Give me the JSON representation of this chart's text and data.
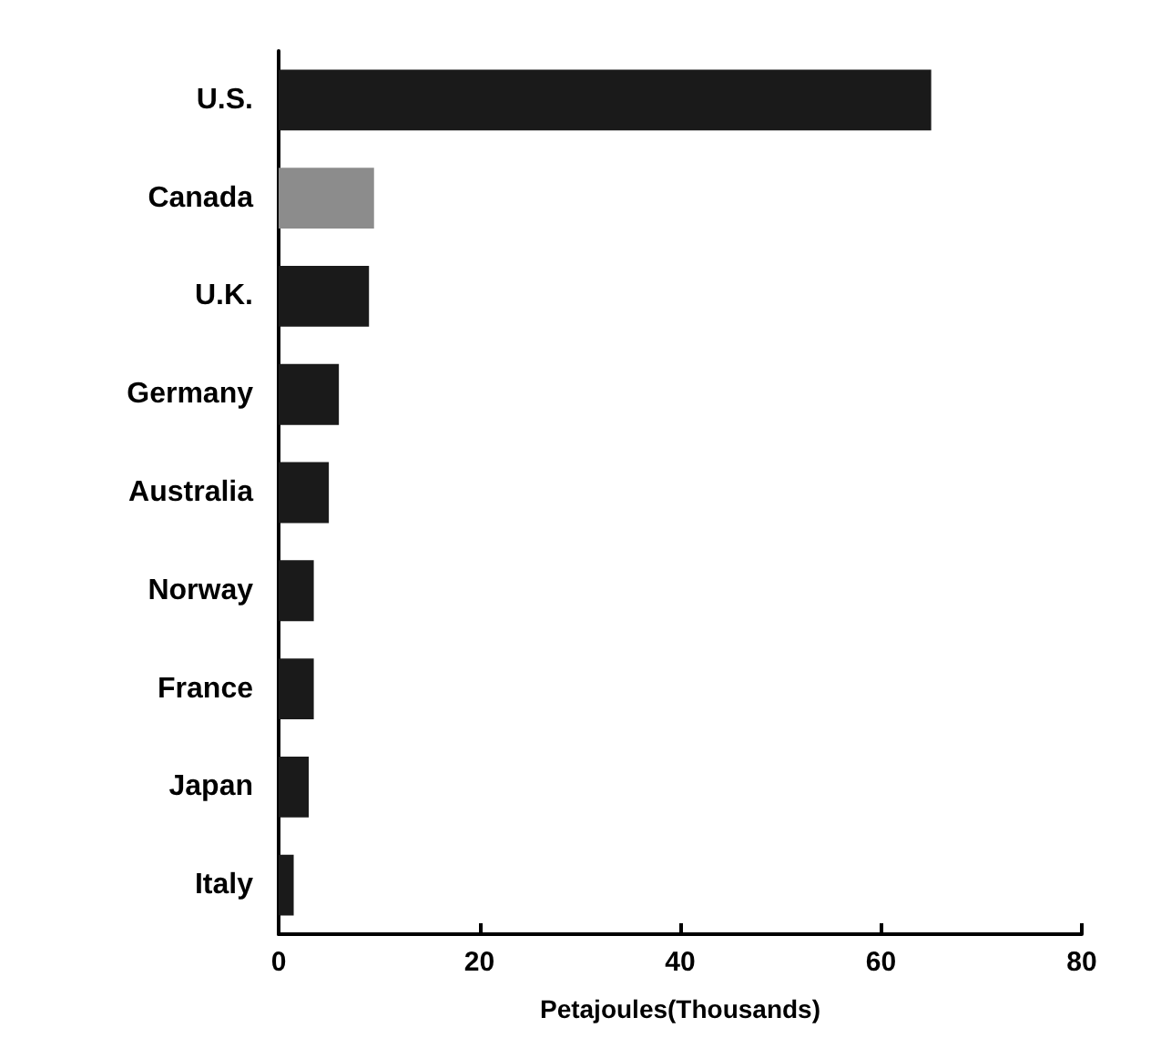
{
  "chart_data": {
    "type": "bar",
    "orientation": "horizontal",
    "xlabel": "Petajoules(Thousands)",
    "categories": [
      "U.S.",
      "Canada",
      "U.K.",
      "Germany",
      "Australia",
      "Norway",
      "France",
      "Japan",
      "Italy"
    ],
    "values": [
      65,
      9.5,
      9,
      6,
      5,
      3.5,
      3.5,
      3,
      1.5
    ],
    "colors": [
      "#1a1a1a",
      "#8c8c8c",
      "#1a1a1a",
      "#1a1a1a",
      "#1a1a1a",
      "#1a1a1a",
      "#1a1a1a",
      "#1a1a1a",
      "#1a1a1a"
    ],
    "xlim": [
      0,
      80
    ],
    "xticks": [
      0,
      20,
      40,
      60,
      80
    ]
  }
}
